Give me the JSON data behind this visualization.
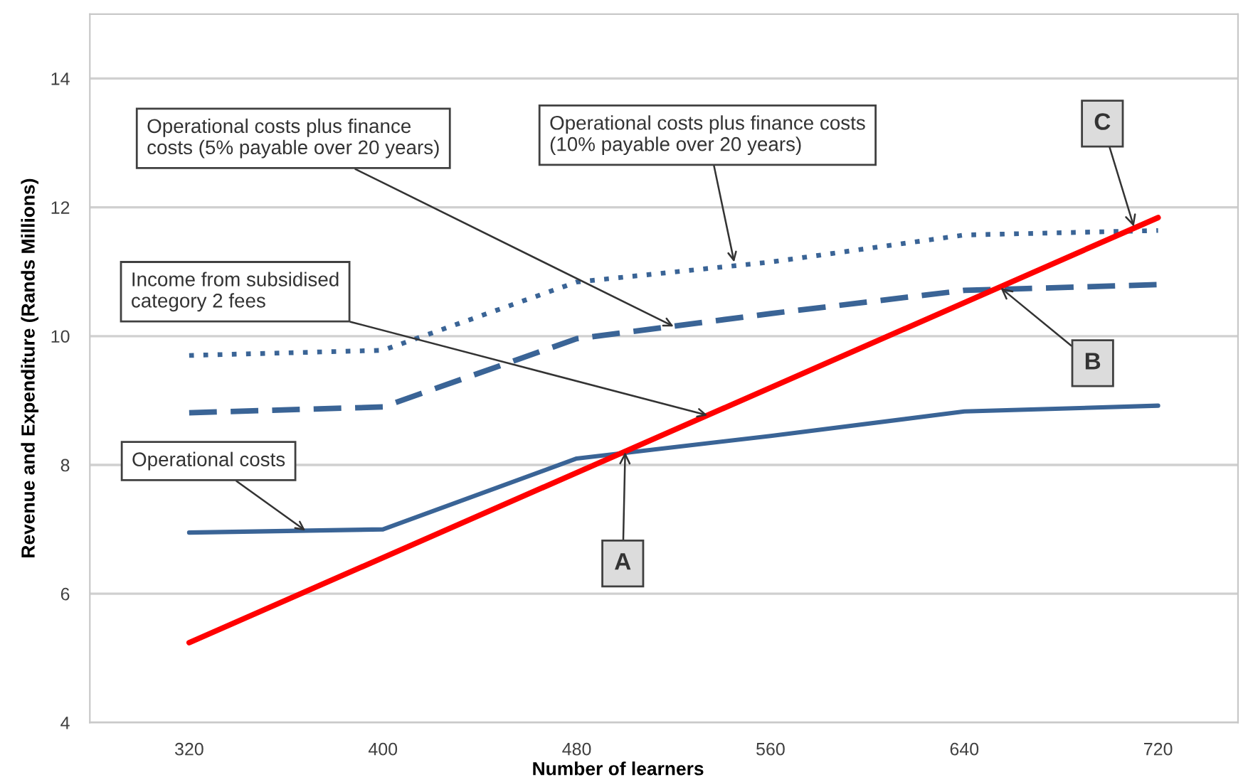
{
  "chart_data": {
    "type": "line",
    "xlabel": "Number of learners",
    "ylabel": "Revenue and Expenditure (Rands Millions)",
    "x": [
      320,
      400,
      480,
      560,
      640,
      720
    ],
    "series": [
      {
        "color": "#3a6496",
        "line_style": "solid",
        "values": [
          6.95,
          7.0,
          8.1,
          8.45,
          8.83,
          8.92
        ]
      },
      {
        "color": "#3a6496",
        "line_style": "dashed",
        "values": [
          8.81,
          8.9,
          9.96,
          10.35,
          10.71,
          10.8
        ]
      },
      {
        "color": "#3a6496",
        "line_style": "dotted",
        "values": [
          9.7,
          9.78,
          10.84,
          11.15,
          11.57,
          11.64
        ]
      },
      {
        "color": "#ff0000",
        "line_style": "solid",
        "x": [
          320,
          720
        ],
        "values": [
          5.24,
          11.84
        ]
      }
    ],
    "xlim": [
      279,
      753
    ],
    "ylim": [
      4,
      15
    ],
    "xticks": [
      320,
      400,
      480,
      560,
      640,
      720
    ],
    "yticks": [
      4,
      6,
      8,
      10,
      12,
      14
    ],
    "grid": "y",
    "legend": false,
    "marker": "none",
    "annotations": [
      {
        "text": "Operational costs plus finance\ncosts (5% payable over 20 years)",
        "x": 520,
        "y": 10.15
      },
      {
        "text": "Operational costs plus finance costs\n(10% payable over 20 years)",
        "x": 545,
        "y": 11.15
      },
      {
        "text": "Income from subsidised\ncategory 2 fees",
        "x": 534,
        "y": 8.77
      },
      {
        "text": "Operational costs",
        "x": 368,
        "y": 6.98
      },
      {
        "text": "A",
        "x": 500,
        "y": 8.2
      },
      {
        "text": "B",
        "x": 655,
        "y": 10.75
      },
      {
        "text": "C",
        "x": 710,
        "y": 11.7
      }
    ]
  }
}
